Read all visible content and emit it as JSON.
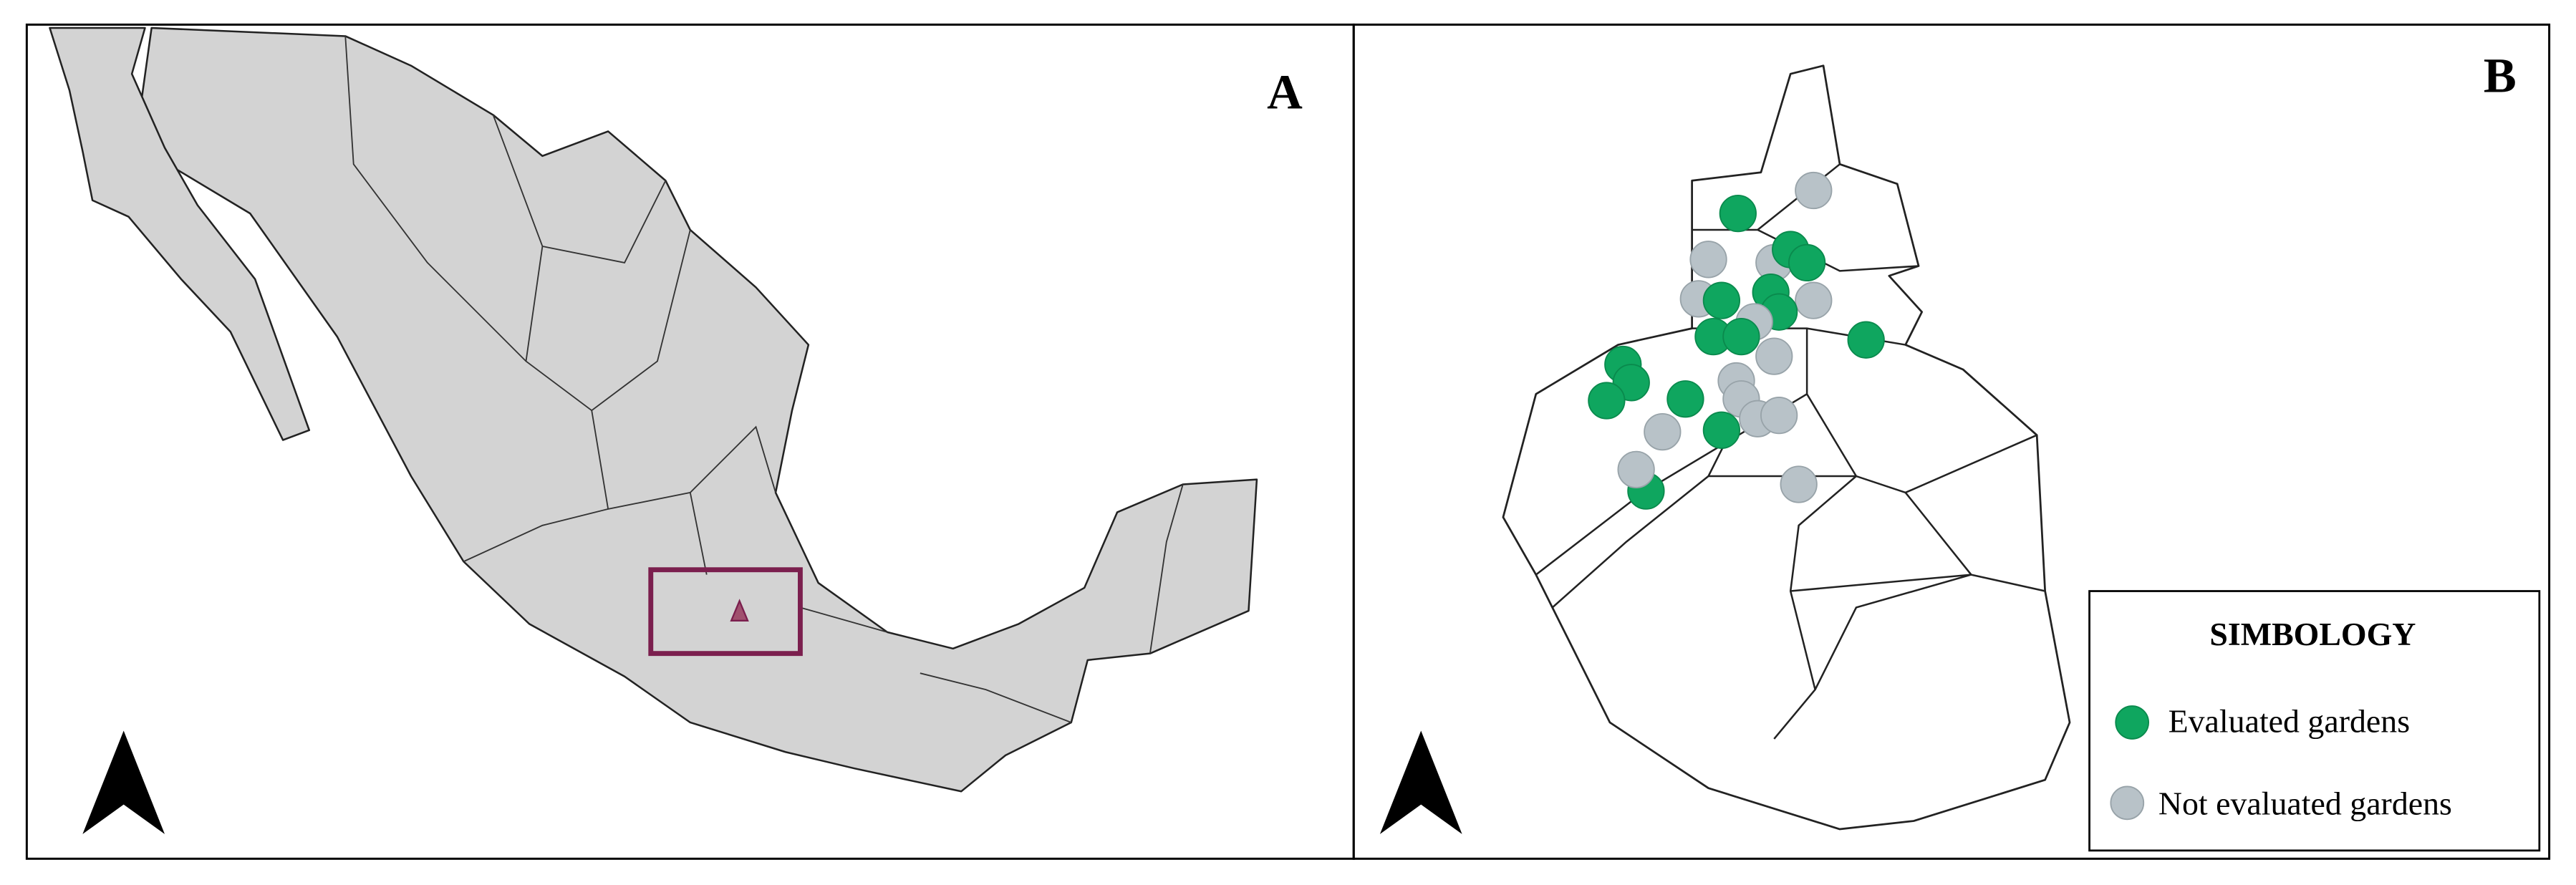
{
  "panels": [
    {
      "label": "A"
    },
    {
      "label": "B"
    }
  ],
  "legend": {
    "title": "SIMBOLOGY",
    "items": [
      "Evaluated gardens",
      "Not evaluated gardens"
    ]
  }
}
